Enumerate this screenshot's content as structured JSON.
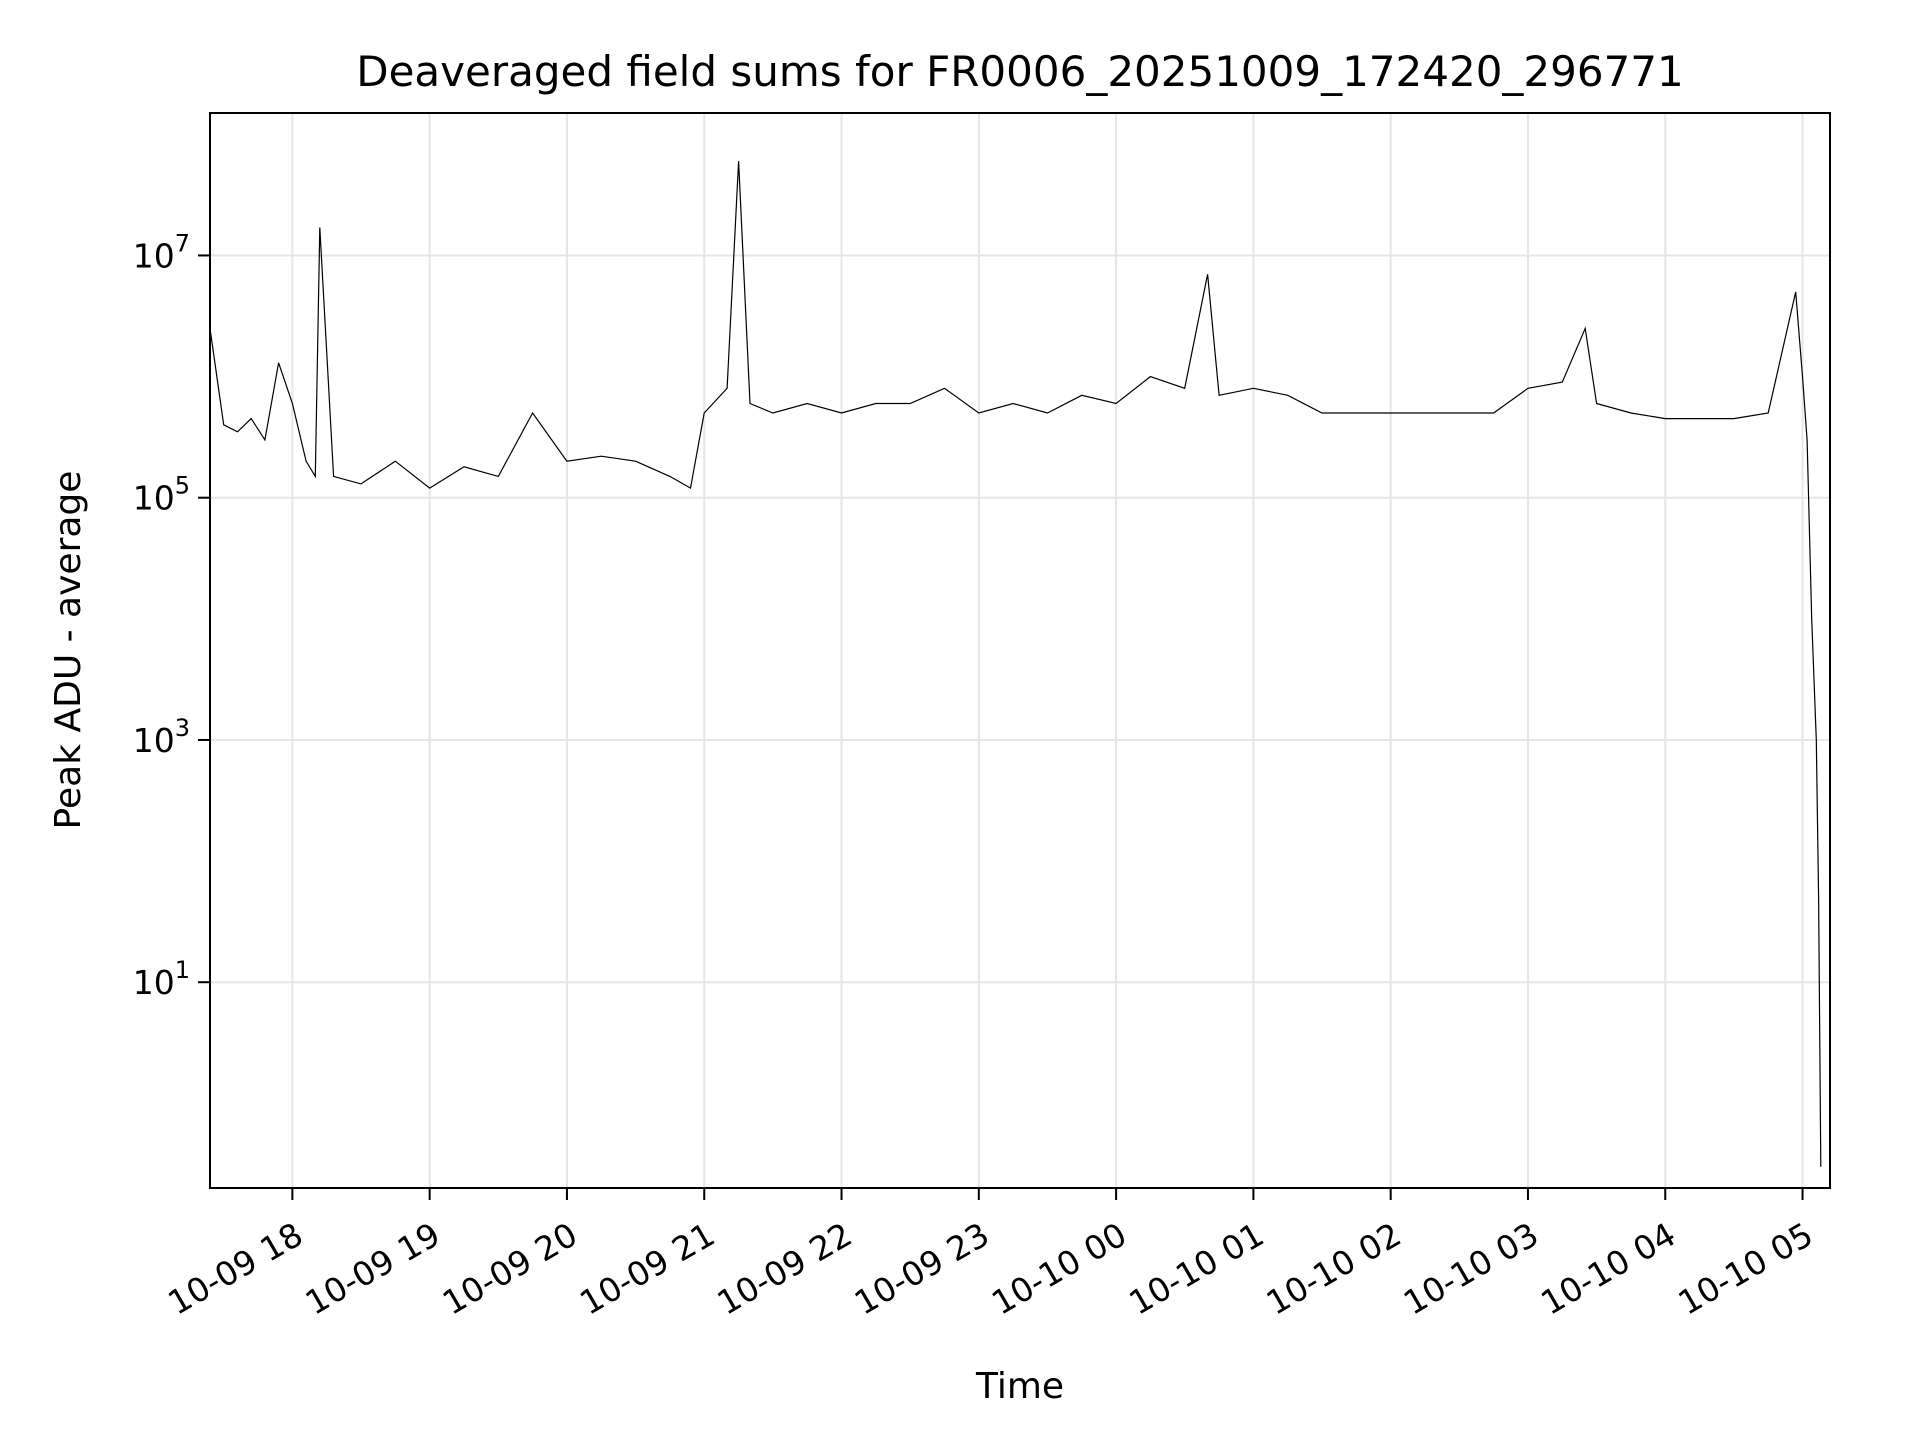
{
  "chart_data": {
    "type": "line",
    "title": "Deaveraged field sums for FR0006_20251009_172420_296771",
    "xlabel": "Time",
    "ylabel": "Peak ADU - average",
    "yscale": "log",
    "grid": true,
    "xlim": [
      "2025-10-09 17:24",
      "2025-10-10 05:12"
    ],
    "ylim": [
      0.2,
      150000000
    ],
    "x_ticks": [
      {
        "value": "2025-10-09 18:00",
        "label": "10-09 18"
      },
      {
        "value": "2025-10-09 19:00",
        "label": "10-09 19"
      },
      {
        "value": "2025-10-09 20:00",
        "label": "10-09 20"
      },
      {
        "value": "2025-10-09 21:00",
        "label": "10-09 21"
      },
      {
        "value": "2025-10-09 22:00",
        "label": "10-09 22"
      },
      {
        "value": "2025-10-09 23:00",
        "label": "10-09 23"
      },
      {
        "value": "2025-10-10 00:00",
        "label": "10-10 00"
      },
      {
        "value": "2025-10-10 01:00",
        "label": "10-10 01"
      },
      {
        "value": "2025-10-10 02:00",
        "label": "10-10 02"
      },
      {
        "value": "2025-10-10 03:00",
        "label": "10-10 03"
      },
      {
        "value": "2025-10-10 04:00",
        "label": "10-10 04"
      },
      {
        "value": "2025-10-10 05:00",
        "label": "10-10 05"
      }
    ],
    "y_ticks": [
      {
        "value": 10,
        "base": "10",
        "exp": "1"
      },
      {
        "value": 1000,
        "base": "10",
        "exp": "3"
      },
      {
        "value": 100000,
        "base": "10",
        "exp": "5"
      },
      {
        "value": 10000000,
        "base": "10",
        "exp": "7"
      }
    ],
    "series": [
      {
        "color": "#000000",
        "x": [
          "2025-10-09 17:24",
          "2025-10-09 17:30",
          "2025-10-09 17:36",
          "2025-10-09 17:42",
          "2025-10-09 17:48",
          "2025-10-09 17:54",
          "2025-10-09 18:00",
          "2025-10-09 18:06",
          "2025-10-09 18:10",
          "2025-10-09 18:12",
          "2025-10-09 18:18",
          "2025-10-09 18:30",
          "2025-10-09 18:45",
          "2025-10-09 19:00",
          "2025-10-09 19:15",
          "2025-10-09 19:30",
          "2025-10-09 19:45",
          "2025-10-09 20:00",
          "2025-10-09 20:15",
          "2025-10-09 20:30",
          "2025-10-09 20:45",
          "2025-10-09 20:54",
          "2025-10-09 21:00",
          "2025-10-09 21:10",
          "2025-10-09 21:15",
          "2025-10-09 21:20",
          "2025-10-09 21:30",
          "2025-10-09 21:45",
          "2025-10-09 22:00",
          "2025-10-09 22:15",
          "2025-10-09 22:30",
          "2025-10-09 22:45",
          "2025-10-09 23:00",
          "2025-10-09 23:15",
          "2025-10-09 23:30",
          "2025-10-09 23:45",
          "2025-10-10 00:00",
          "2025-10-10 00:15",
          "2025-10-10 00:30",
          "2025-10-10 00:40",
          "2025-10-10 00:45",
          "2025-10-10 01:00",
          "2025-10-10 01:15",
          "2025-10-10 01:30",
          "2025-10-10 01:45",
          "2025-10-10 02:00",
          "2025-10-10 02:15",
          "2025-10-10 02:30",
          "2025-10-10 02:45",
          "2025-10-10 03:00",
          "2025-10-10 03:15",
          "2025-10-10 03:25",
          "2025-10-10 03:30",
          "2025-10-10 03:45",
          "2025-10-10 04:00",
          "2025-10-10 04:15",
          "2025-10-10 04:30",
          "2025-10-10 04:45",
          "2025-10-10 04:57",
          "2025-10-10 05:00",
          "2025-10-10 05:02",
          "2025-10-10 05:04",
          "2025-10-10 05:06",
          "2025-10-10 05:07",
          "2025-10-10 05:08"
        ],
        "y": [
          2500000,
          400000,
          350000,
          450000,
          300000,
          1300000,
          600000,
          200000,
          150000,
          17000000,
          150000,
          130000,
          200000,
          120000,
          180000,
          150000,
          500000,
          200000,
          220000,
          200000,
          150000,
          120000,
          500000,
          800000,
          60000000,
          600000,
          500000,
          600000,
          500000,
          600000,
          600000,
          800000,
          500000,
          600000,
          500000,
          700000,
          600000,
          1000000,
          800000,
          7000000,
          700000,
          800000,
          700000,
          500000,
          500000,
          500000,
          500000,
          500000,
          500000,
          800000,
          900000,
          2500000,
          600000,
          500000,
          450000,
          450000,
          450000,
          500000,
          5000000,
          1000000,
          300000,
          10000,
          1000,
          50,
          0.3
        ]
      }
    ]
  }
}
